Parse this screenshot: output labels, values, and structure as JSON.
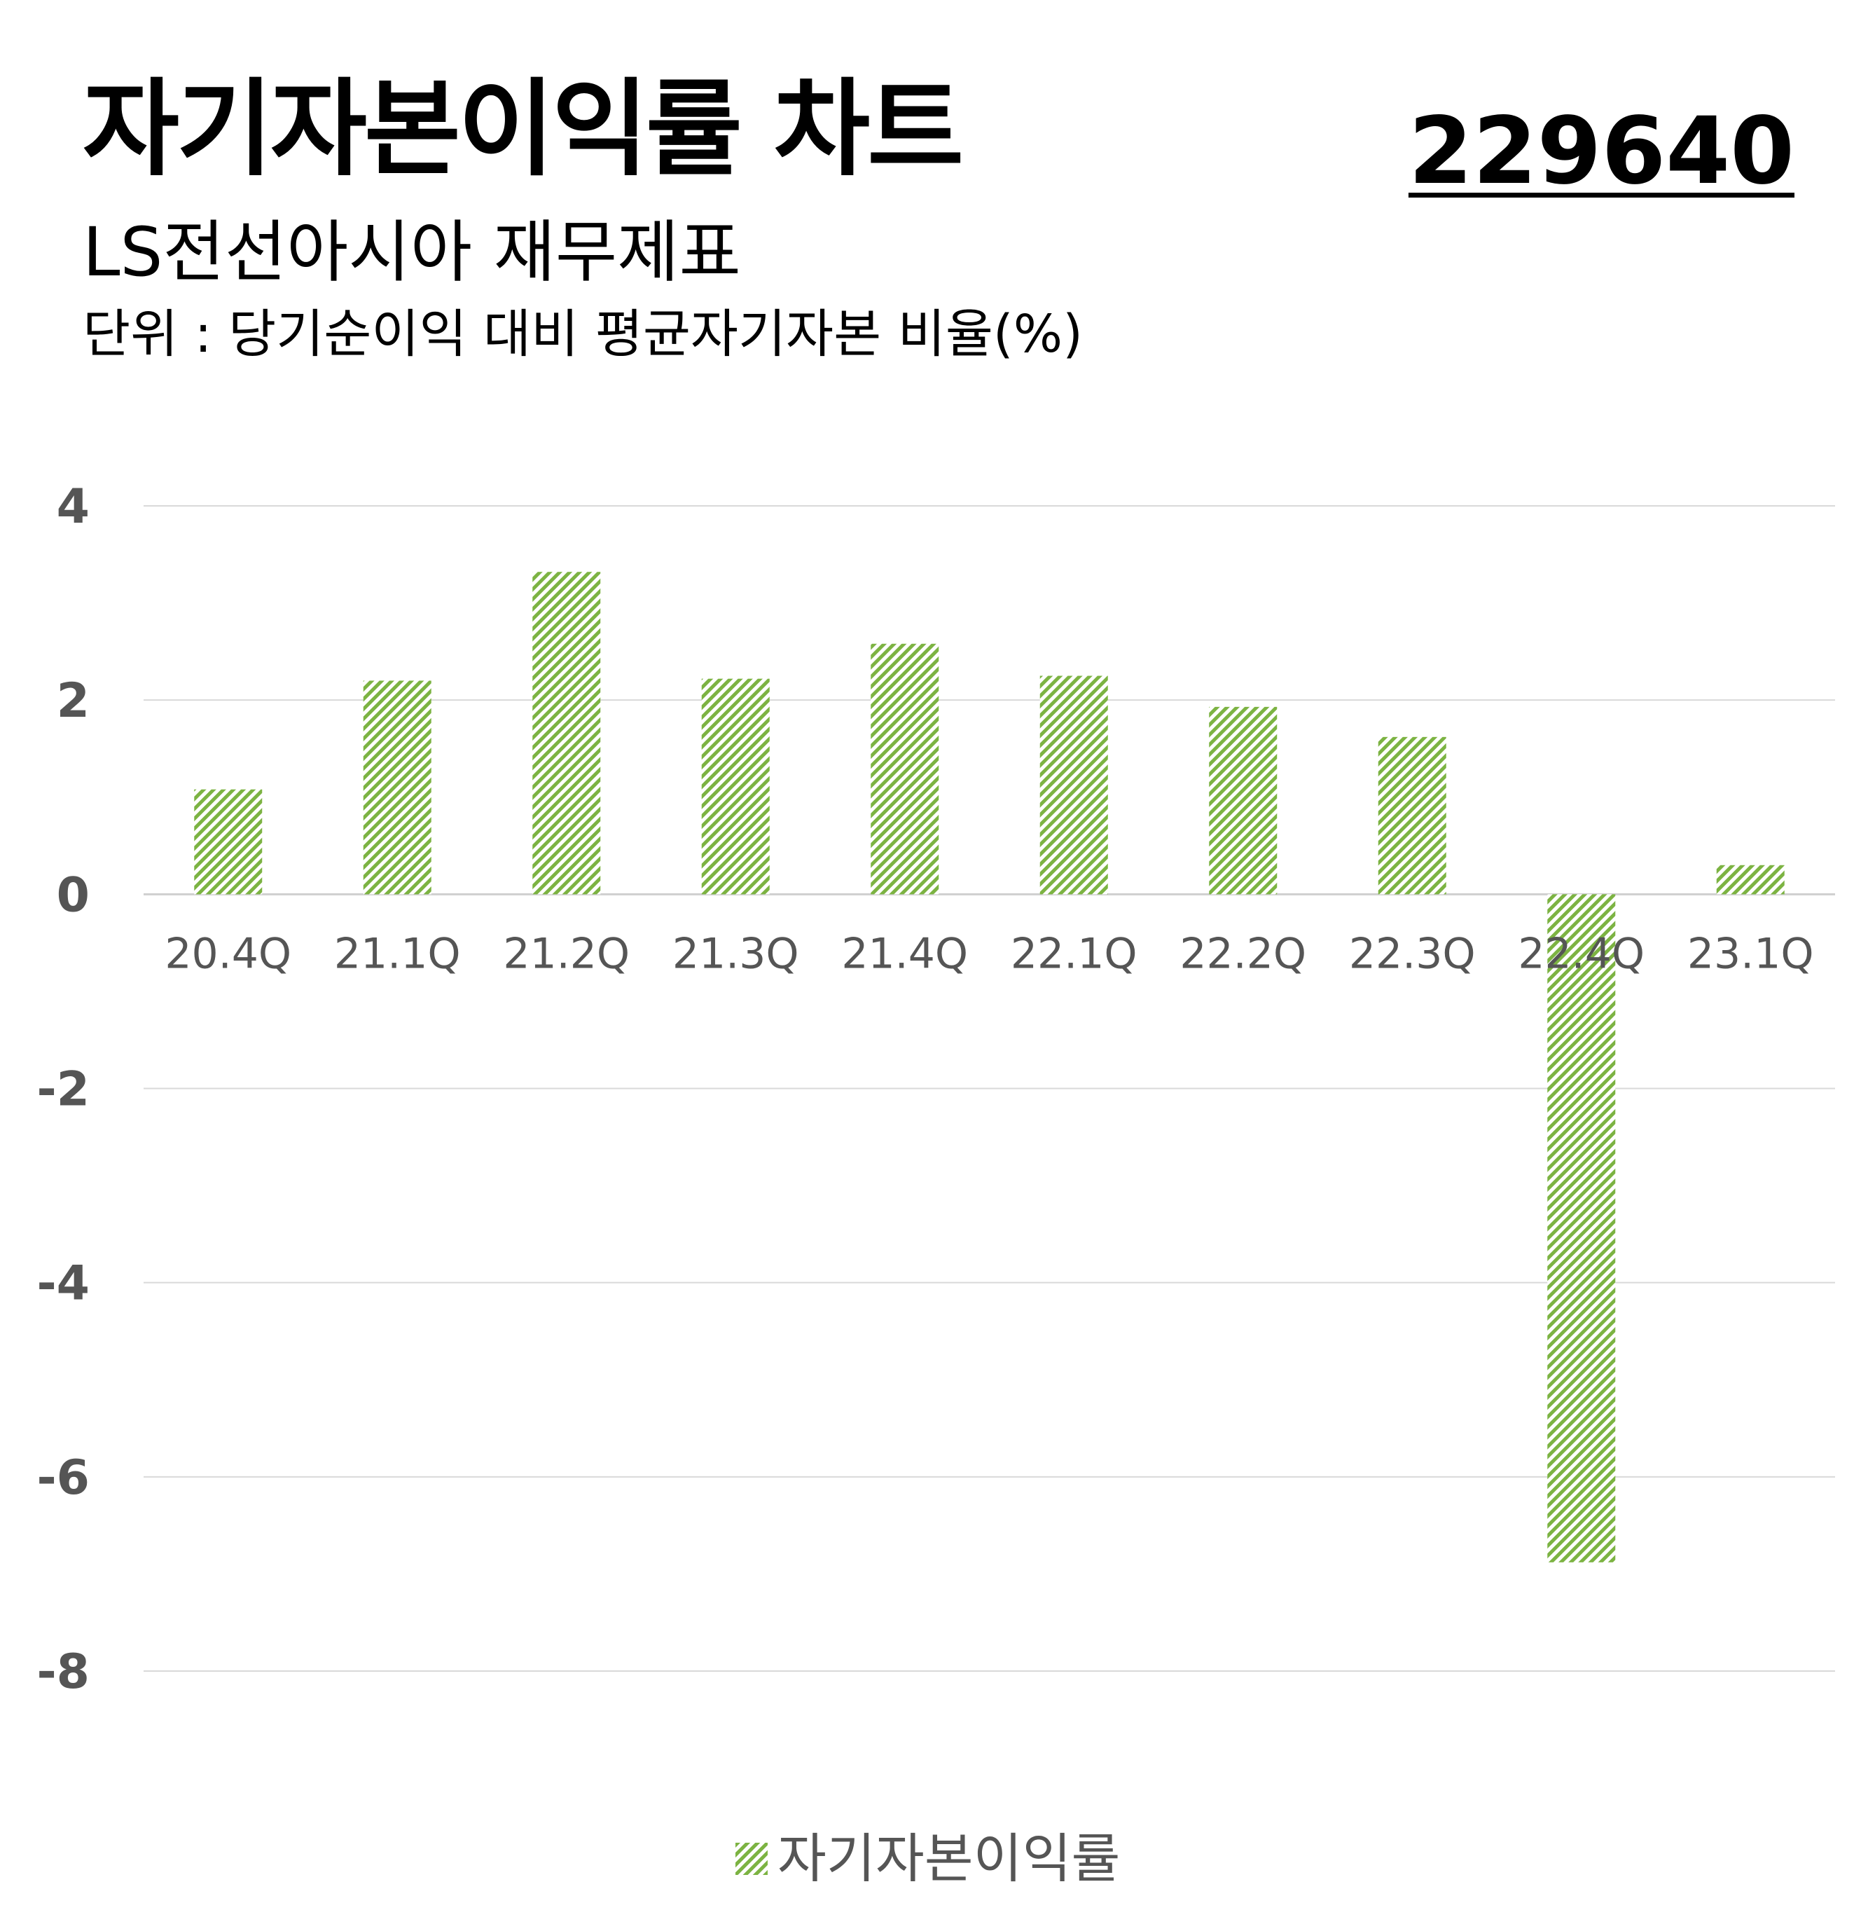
{
  "header": {
    "title": "자기자본이익률 차트",
    "code": "229640",
    "subtitle": "LS전선아시아 재무제표",
    "unit": "단위 : 당기순이익 대비 평균자기자본 비율(%)"
  },
  "colors": {
    "bar": "#7cb342",
    "grid": "#d9d9d9",
    "axis_text": "#555555"
  },
  "chart_data": {
    "type": "bar",
    "categories": [
      "20.4Q",
      "21.1Q",
      "21.2Q",
      "21.3Q",
      "21.4Q",
      "22.1Q",
      "22.2Q",
      "22.3Q",
      "22.4Q",
      "23.1Q"
    ],
    "series": [
      {
        "name": "자기자본이익률",
        "values": [
          1.08,
          2.2,
          3.32,
          2.22,
          2.58,
          2.25,
          1.93,
          1.62,
          -6.88,
          0.3
        ]
      }
    ],
    "yticks": [
      4,
      2,
      0,
      -2,
      -4,
      -6,
      -8
    ],
    "ylim": [
      -8,
      4
    ],
    "grid": true,
    "legend_position": "bottom"
  }
}
